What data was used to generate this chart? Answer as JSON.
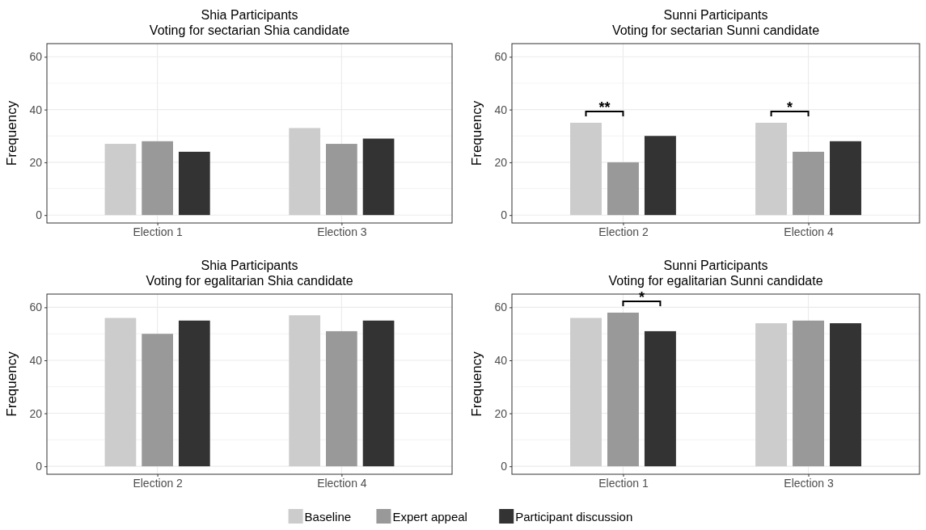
{
  "chart_data": [
    {
      "type": "bar",
      "title": "Shia Participants",
      "subtitle": "Voting for sectarian Shia candidate",
      "ylabel": "Frequency",
      "categories": [
        "Election 1",
        "Election 3"
      ],
      "ylim": [
        -3,
        65
      ],
      "yticks": [
        0,
        {
          "value": 10,
          "label": null
        },
        20,
        {
          "value": 30,
          "label": null
        },
        40,
        {
          "value": 50,
          "label": null
        },
        60
      ],
      "grid": true,
      "legend": "bottom",
      "series": [
        {
          "name": "Baseline",
          "color": "#cccccc",
          "values": [
            27,
            33
          ]
        },
        {
          "name": "Expert appeal",
          "color": "#999999",
          "values": [
            28,
            27
          ]
        },
        {
          "name": "Participant discussion",
          "color": "#333333",
          "values": [
            24,
            29
          ]
        }
      ]
    },
    {
      "type": "bar",
      "title": "Sunni Participants",
      "subtitle": "Voting for sectarian Sunni candidate",
      "ylabel": "Frequency",
      "categories": [
        "Election 2",
        "Election 4"
      ],
      "ylim": [
        -3,
        65
      ],
      "yticks": [
        0,
        {
          "value": 10,
          "label": null
        },
        20,
        {
          "value": 30,
          "label": null
        },
        40,
        {
          "value": 50,
          "label": null
        },
        60
      ],
      "grid": true,
      "series": [
        {
          "color": "#cccccc",
          "values": [
            35,
            35
          ]
        },
        {
          "color": "#999999",
          "values": [
            20,
            24
          ]
        },
        {
          "color": "#333333",
          "values": [
            30,
            28
          ]
        }
      ],
      "annotations": [
        "**",
        "*"
      ]
    },
    {
      "type": "bar",
      "title": "Shia Participants",
      "subtitle": "Voting for egalitarian Shia candidate",
      "ylabel": "Frequency",
      "categories": [
        "Election 2",
        "Election 4"
      ],
      "ylim": [
        -3,
        65
      ],
      "yticks": [
        0,
        {
          "value": 10,
          "label": null
        },
        20,
        {
          "value": 30,
          "label": null
        },
        40,
        {
          "value": 50,
          "label": null
        },
        60
      ],
      "grid": true,
      "series": [
        {
          "color": "#cccccc",
          "values": [
            56,
            57
          ]
        },
        {
          "color": "#999999",
          "values": [
            50,
            51
          ]
        },
        {
          "color": "#333333",
          "values": [
            55,
            55
          ]
        }
      ]
    },
    {
      "type": "bar",
      "title": "Sunni Participants",
      "subtitle": "Voting for egalitarian Sunni candidate",
      "ylabel": "Frequency",
      "categories": [
        "Election 1",
        "Election 3"
      ],
      "ylim": [
        -3,
        65
      ],
      "yticks": [
        0,
        {
          "value": 10,
          "label": null
        },
        20,
        {
          "value": 30,
          "label": null
        },
        40,
        {
          "value": 50,
          "label": null
        },
        60
      ],
      "grid": true,
      "series": [
        {
          "color": "#cccccc",
          "values": [
            56,
            54
          ]
        },
        {
          "color": "#999999",
          "values": [
            58,
            55
          ]
        },
        {
          "color": "#333333",
          "values": [
            51,
            54
          ]
        }
      ],
      "annotations": [
        "*"
      ]
    }
  ]
}
